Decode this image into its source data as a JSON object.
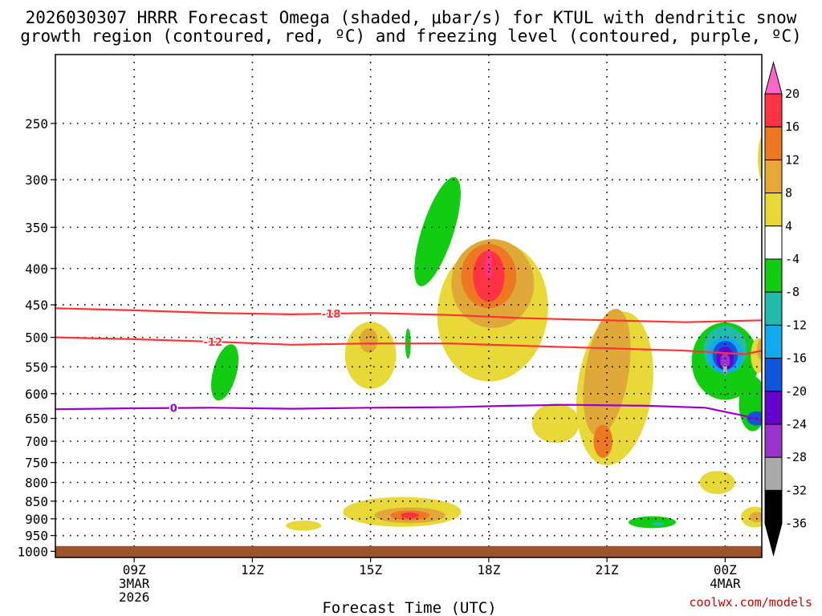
{
  "chart_data": {
    "type": "heatmap",
    "title_line1": "2026030307 HRRR Forecast Omega (shaded, μbar/s) for KTUL with dendritic snow",
    "title_line2": "growth region (contoured, red, ºC) and freezing level (contoured, purple, ºC)",
    "xlabel": "Forecast Time (UTC)",
    "credit": "coolwx.com/models",
    "x_range_hours": [
      7,
      24.93
    ],
    "x_ticks": [
      {
        "hour": 9,
        "lines": [
          "09Z",
          "3MAR",
          "2026"
        ]
      },
      {
        "hour": 12,
        "lines": [
          "12Z"
        ]
      },
      {
        "hour": 15,
        "lines": [
          "15Z"
        ]
      },
      {
        "hour": 18,
        "lines": [
          "18Z"
        ]
      },
      {
        "hour": 21,
        "lines": [
          "21Z"
        ]
      },
      {
        "hour": 24,
        "lines": [
          "00Z",
          "4MAR"
        ]
      }
    ],
    "y_range_hpa": [
      200,
      1020
    ],
    "y_ticks": [
      250,
      300,
      350,
      400,
      450,
      500,
      550,
      600,
      650,
      700,
      750,
      800,
      850,
      900,
      950,
      1000
    ],
    "surface_pressure_hpa": 983,
    "colorbar": {
      "ticks": [
        "20",
        "16",
        "12",
        "8",
        "4",
        "-4",
        "-8",
        "-12",
        "-16",
        "-20",
        "-24",
        "-28",
        "-32",
        "-36"
      ],
      "colors": [
        "#ff66cc",
        "#ff3344",
        "#ee7722",
        "#e8a838",
        "#e8d838",
        "#ffffff",
        "#11cc11",
        "#22bbaa",
        "#11aaee",
        "#1155dd",
        "#6600cc",
        "#9933cc",
        "#aaaaaa",
        "#000000"
      ]
    },
    "shading_colors": {
      "y4": "#e8d838",
      "y8": "#e0a838",
      "y12": "#ee7722",
      "y16": "#ff3344",
      "y20": "#ff3388",
      "g4": "#11cc11",
      "g8": "#22bbaa",
      "g12": "#11aaee",
      "g16": "#1155dd",
      "g20": "#6600cc",
      "g24": "#9933cc",
      "g28": "#aaaaaa"
    },
    "blobs": [
      {
        "level": "g4",
        "hour": 11.3,
        "p": 560,
        "hw": 0.3,
        "ph": 105,
        "a": 0.5
      },
      {
        "level": "g4",
        "hour": 16.7,
        "p": 355,
        "hw": 0.4,
        "ph": 130,
        "a": 0.6
      },
      {
        "level": "g4",
        "hour": 15.95,
        "p": 510,
        "hw": 0.07,
        "ph": 50,
        "a": 0
      },
      {
        "level": "g4",
        "hour": 22.15,
        "p": 910,
        "hw": 0.6,
        "ph": 35,
        "a": 0
      },
      {
        "level": "g8",
        "hour": 22.3,
        "p": 915,
        "hw": 0.15,
        "ph": 12,
        "a": 0
      },
      {
        "level": "y4",
        "hour": 15.0,
        "p": 530,
        "hw": 0.65,
        "ph": 115,
        "a": 0
      },
      {
        "level": "y8",
        "hour": 14.95,
        "p": 505,
        "hw": 0.23,
        "ph": 40,
        "a": 0
      },
      {
        "level": "y4",
        "hour": 13.3,
        "p": 920,
        "hw": 0.45,
        "ph": 30,
        "a": 0
      },
      {
        "level": "y4",
        "hour": 15.8,
        "p": 880,
        "hw": 1.5,
        "ph": 85,
        "a": 0
      },
      {
        "level": "y8",
        "hour": 16.0,
        "p": 890,
        "hw": 0.9,
        "ph": 45,
        "a": 0
      },
      {
        "level": "y12",
        "hour": 16.0,
        "p": 890,
        "hw": 0.5,
        "ph": 28,
        "a": 0
      },
      {
        "level": "y16",
        "hour": 16.0,
        "p": 890,
        "hw": 0.23,
        "ph": 17,
        "a": 0
      },
      {
        "level": "y4",
        "hour": 18.1,
        "p": 460,
        "hw": 1.4,
        "ph": 205,
        "a": 0.25
      },
      {
        "level": "y4",
        "hour": 19.7,
        "p": 660,
        "hw": 0.6,
        "ph": 85,
        "a": 0
      },
      {
        "level": "y4",
        "hour": 21.2,
        "p": 590,
        "hw": 0.95,
        "ph": 290,
        "a": 0.25
      },
      {
        "level": "y8",
        "hour": 18.1,
        "p": 420,
        "hw": 1.05,
        "ph": 120,
        "a": 0
      },
      {
        "level": "y12",
        "hour": 18.0,
        "p": 410,
        "hw": 0.7,
        "ph": 85,
        "a": 0
      },
      {
        "level": "y16",
        "hour": 18.0,
        "p": 410,
        "hw": 0.4,
        "ph": 68,
        "a": 0
      },
      {
        "level": "y20",
        "hour": 18.0,
        "p": 395,
        "hw": 0.08,
        "ph": 38,
        "a": 0
      },
      {
        "level": "y8",
        "hour": 21.0,
        "p": 560,
        "hw": 0.55,
        "ph": 230,
        "a": 0.3
      },
      {
        "level": "y12",
        "hour": 20.9,
        "p": 700,
        "hw": 0.24,
        "ph": 75,
        "a": 0
      },
      {
        "level": "g4",
        "hour": 24.0,
        "p": 540,
        "hw": 0.85,
        "ph": 135,
        "a": 0
      },
      {
        "level": "g4",
        "hour": 24.7,
        "p": 620,
        "hw": 0.35,
        "ph": 110,
        "a": 0
      },
      {
        "level": "g8",
        "hour": 24.0,
        "p": 520,
        "hw": 0.55,
        "ph": 80,
        "a": 0
      },
      {
        "level": "g12",
        "hour": 24.0,
        "p": 530,
        "hw": 0.45,
        "ph": 62,
        "a": 0
      },
      {
        "level": "g16",
        "hour": 24.0,
        "p": 530,
        "hw": 0.32,
        "ph": 50,
        "a": 0
      },
      {
        "level": "g20",
        "hour": 24.0,
        "p": 535,
        "hw": 0.22,
        "ph": 40,
        "a": 0
      },
      {
        "level": "g24",
        "hour": 24.0,
        "p": 540,
        "hw": 0.12,
        "ph": 28,
        "a": 0
      },
      {
        "level": "g28",
        "hour": 24.0,
        "p": 555,
        "hw": 0.05,
        "ph": 20,
        "a": 0
      },
      {
        "level": "g16",
        "hour": 24.8,
        "p": 650,
        "hw": 0.25,
        "ph": 30,
        "a": 0
      },
      {
        "level": "y4",
        "hour": 24.85,
        "p": 530,
        "hw": 0.2,
        "ph": 60,
        "a": 0
      },
      {
        "level": "y8",
        "hour": 24.9,
        "p": 520,
        "hw": 0.09,
        "ph": 35,
        "a": 0
      },
      {
        "level": "y4",
        "hour": 24.95,
        "p": 280,
        "hw": 0.12,
        "ph": 40,
        "a": 0
      },
      {
        "level": "y4",
        "hour": 23.8,
        "p": 800,
        "hw": 0.45,
        "ph": 60,
        "a": 0
      },
      {
        "level": "y4",
        "hour": 24.75,
        "p": 895,
        "hw": 0.35,
        "ph": 60,
        "a": 0
      },
      {
        "level": "y8",
        "hour": 24.8,
        "p": 895,
        "hw": 0.18,
        "ph": 30,
        "a": 0
      }
    ],
    "contours": [
      {
        "name": "-18",
        "color": "#ff3333",
        "label_hour": 14.0,
        "points": [
          [
            7,
            455
          ],
          [
            9,
            458
          ],
          [
            11,
            462
          ],
          [
            13,
            464
          ],
          [
            15,
            462
          ],
          [
            17,
            465
          ],
          [
            19,
            470
          ],
          [
            21,
            473
          ],
          [
            23,
            476
          ],
          [
            24.93,
            473
          ]
        ]
      },
      {
        "name": "-12",
        "color": "#ff3333",
        "label_hour": 11.0,
        "points": [
          [
            7,
            500
          ],
          [
            9,
            503
          ],
          [
            11,
            507
          ],
          [
            13,
            512
          ],
          [
            15,
            510
          ],
          [
            17,
            510
          ],
          [
            19,
            514
          ],
          [
            21,
            518
          ],
          [
            23,
            522
          ],
          [
            24.5,
            528
          ],
          [
            24.93,
            522
          ]
        ]
      },
      {
        "name": "0",
        "color": "#9900cc",
        "label_hour": 10.0,
        "points": [
          [
            7,
            631
          ],
          [
            9,
            629
          ],
          [
            11,
            628
          ],
          [
            13,
            630
          ],
          [
            15,
            628
          ],
          [
            17,
            627
          ],
          [
            18.5,
            624
          ],
          [
            20,
            622
          ],
          [
            22,
            624
          ],
          [
            23.5,
            628
          ],
          [
            24.5,
            645
          ],
          [
            24.93,
            655
          ]
        ]
      }
    ]
  }
}
